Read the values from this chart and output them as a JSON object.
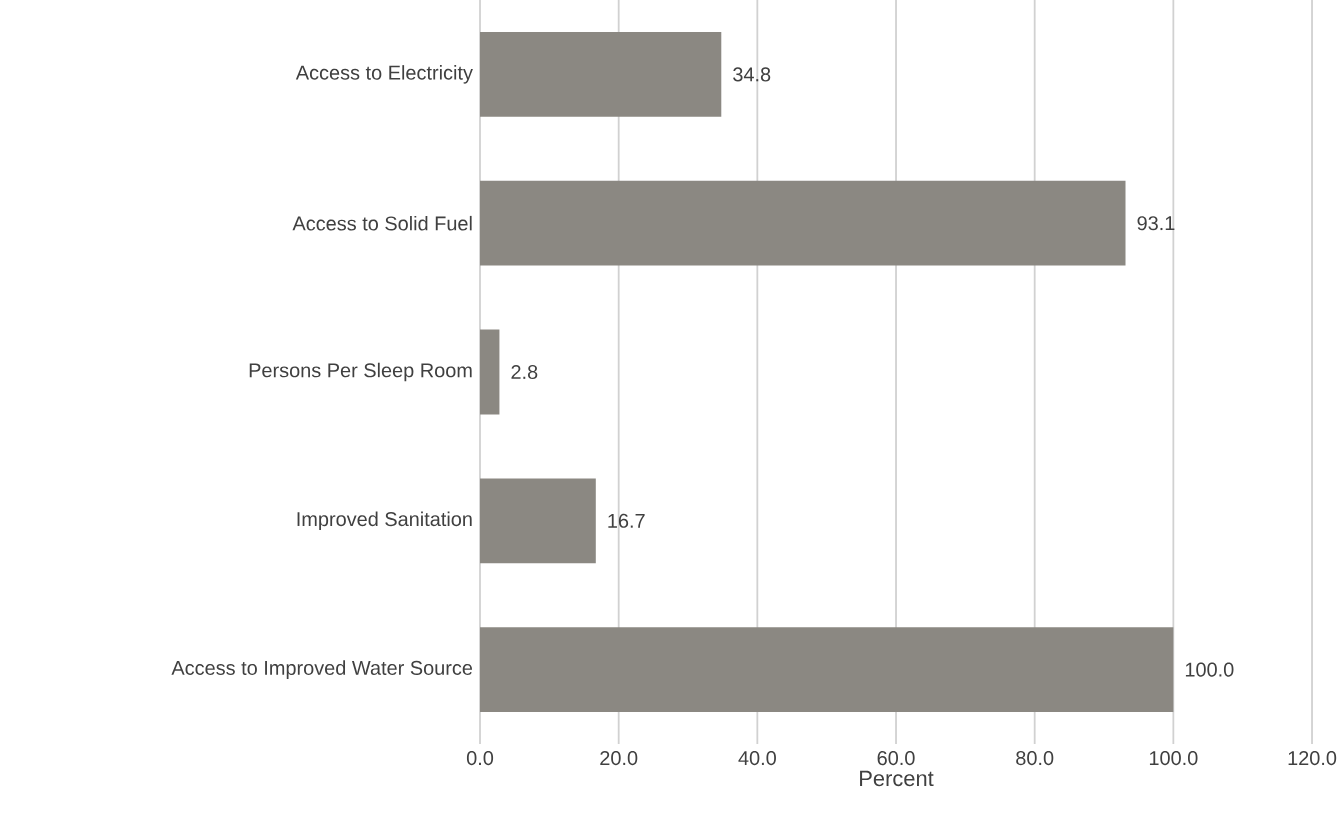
{
  "chart_data": {
    "type": "bar",
    "orientation": "horizontal",
    "xlabel": "Percent",
    "categories": [
      "Access to Electricity",
      "Access to Solid Fuel",
      "Persons Per Sleep Room",
      "Improved Sanitation",
      "Access to Improved Water Source"
    ],
    "values": [
      34.8,
      93.1,
      2.8,
      16.7,
      100.0
    ],
    "value_labels": [
      "34.8",
      "93.1",
      "2.8",
      "16.7",
      "100.0"
    ],
    "color": "#8b8882",
    "xlim": [
      0,
      120
    ],
    "xticks": [
      {
        "value": 0,
        "label": "0.0"
      },
      {
        "value": 20,
        "label": "20.0"
      },
      {
        "value": 40,
        "label": "40.0"
      },
      {
        "value": 60,
        "label": "60.0"
      },
      {
        "value": 80,
        "label": "80.0"
      },
      {
        "value": 100,
        "label": "100.0"
      },
      {
        "value": 120,
        "label": "120.0"
      }
    ],
    "grid": "x"
  }
}
